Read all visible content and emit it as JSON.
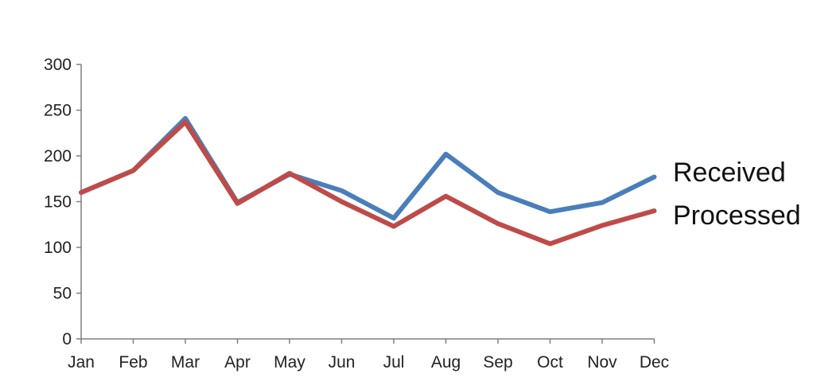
{
  "chart_data": {
    "type": "line",
    "title": "",
    "xlabel": "",
    "ylabel": "",
    "categories": [
      "Jan",
      "Feb",
      "Mar",
      "Apr",
      "May",
      "Jun",
      "Jul",
      "Aug",
      "Sep",
      "Oct",
      "Nov",
      "Dec"
    ],
    "ylim": [
      0,
      300
    ],
    "yticks": [
      "0",
      "50",
      "100",
      "150",
      "200",
      "250",
      "300"
    ],
    "grid": false,
    "legend": "right",
    "series": [
      {
        "name": "Received",
        "color": "#4a7ebb",
        "values": [
          160,
          184,
          241,
          149,
          180,
          162,
          132,
          202,
          160,
          139,
          149,
          177
        ]
      },
      {
        "name": "Processed",
        "color": "#be4b48",
        "values": [
          160,
          184,
          237,
          148,
          181,
          150,
          123,
          156,
          126,
          104,
          124,
          140
        ]
      }
    ]
  }
}
